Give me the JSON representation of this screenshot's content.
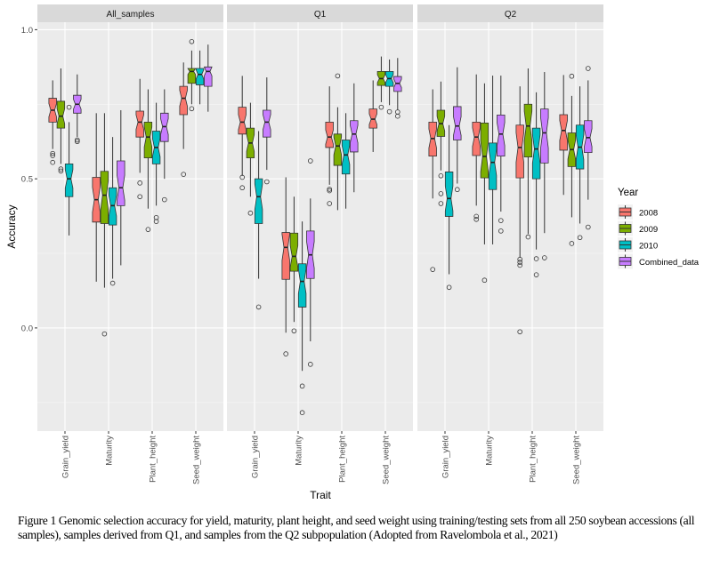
{
  "chart_data": {
    "type": "boxplot",
    "subtype": "notched, faceted",
    "xlabel": "Trait",
    "ylabel": "Accuracy",
    "ylim": [
      -0.346,
      1.025
    ],
    "yticks": [
      {
        "value": 0.0,
        "label": "0.0"
      },
      {
        "value": 0.5,
        "label": "0.5"
      },
      {
        "value": 1.0,
        "label": "1.0"
      }
    ],
    "grid": true,
    "categories": [
      "Grain_yield",
      "Maturity",
      "Plant_height",
      "Seed_weight"
    ],
    "legend": {
      "title": "Year",
      "placement": "right",
      "entries": [
        {
          "label": "2008",
          "color": "#F8766D"
        },
        {
          "label": "2009",
          "color": "#7CAE00"
        },
        {
          "label": "2010",
          "color": "#00BFC4"
        },
        {
          "label": "Combined_data",
          "color": "#C77CFF"
        }
      ]
    },
    "panels": [
      {
        "name": "All_samples",
        "traits": [
          {
            "trait": "Grain_yield",
            "boxes": [
              {
                "low": 0.6,
                "q1": 0.69,
                "median": 0.73,
                "q3": 0.77,
                "high": 0.83,
                "outliers": [
                  0.585,
                  0.578,
                  0.555
                ]
              },
              {
                "low": 0.55,
                "q1": 0.67,
                "median": 0.71,
                "q3": 0.76,
                "high": 0.87,
                "outliers": [
                  0.533,
                  0.526
                ]
              },
              {
                "low": 0.31,
                "q1": 0.44,
                "median": 0.5,
                "q3": 0.55,
                "high": 0.69,
                "outliers": [
                  0.74
                ]
              },
              {
                "low": 0.64,
                "q1": 0.72,
                "median": 0.75,
                "q3": 0.78,
                "high": 0.85,
                "outliers": [
                  0.63,
                  0.625
                ]
              }
            ]
          },
          {
            "trait": "Maturity",
            "boxes": [
              {
                "low": 0.155,
                "q1": 0.355,
                "median": 0.43,
                "q3": 0.505,
                "high": 0.72,
                "outliers": []
              },
              {
                "low": 0.135,
                "q1": 0.35,
                "median": 0.445,
                "q3": 0.525,
                "high": 0.72,
                "outliers": [
                  -0.02
                ]
              },
              {
                "low": 0.165,
                "q1": 0.345,
                "median": 0.41,
                "q3": 0.47,
                "high": 0.64,
                "outliers": [
                  0.15
                ]
              },
              {
                "low": 0.21,
                "q1": 0.41,
                "median": 0.47,
                "q3": 0.56,
                "high": 0.73,
                "outliers": []
              }
            ]
          },
          {
            "trait": "Plant_height",
            "boxes": [
              {
                "low": 0.52,
                "q1": 0.64,
                "median": 0.69,
                "q3": 0.727,
                "high": 0.835,
                "outliers": [
                  0.486,
                  0.44
                ]
              },
              {
                "low": 0.4,
                "q1": 0.57,
                "median": 0.64,
                "q3": 0.69,
                "high": 0.8,
                "outliers": [
                  0.33
                ]
              },
              {
                "low": 0.41,
                "q1": 0.55,
                "median": 0.605,
                "q3": 0.66,
                "high": 0.755,
                "outliers": [
                  0.37,
                  0.357
                ]
              },
              {
                "low": 0.5,
                "q1": 0.625,
                "median": 0.675,
                "q3": 0.72,
                "high": 0.8,
                "outliers": [
                  0.43
                ]
              }
            ]
          },
          {
            "trait": "Seed_weight",
            "boxes": [
              {
                "low": 0.6,
                "q1": 0.715,
                "median": 0.77,
                "q3": 0.81,
                "high": 0.89,
                "outliers": [
                  0.515
                ]
              },
              {
                "low": 0.75,
                "q1": 0.82,
                "median": 0.86,
                "q3": 0.87,
                "high": 0.93,
                "outliers": [
                  0.96,
                  0.735
                ]
              },
              {
                "low": 0.75,
                "q1": 0.815,
                "median": 0.85,
                "q3": 0.87,
                "high": 0.93,
                "outliers": []
              },
              {
                "low": 0.725,
                "q1": 0.81,
                "median": 0.86,
                "q3": 0.875,
                "high": 0.95,
                "outliers": []
              }
            ]
          }
        ]
      },
      {
        "name": "Q1",
        "traits": [
          {
            "trait": "Grain_yield",
            "boxes": [
              {
                "low": 0.51,
                "q1": 0.65,
                "median": 0.69,
                "q3": 0.74,
                "high": 0.845,
                "outliers": [
                  0.505,
                  0.47
                ]
              },
              {
                "low": 0.44,
                "q1": 0.57,
                "median": 0.62,
                "q3": 0.67,
                "high": 0.755,
                "outliers": [
                  0.385
                ]
              },
              {
                "low": 0.165,
                "q1": 0.35,
                "median": 0.44,
                "q3": 0.5,
                "high": 0.66,
                "outliers": [
                  0.07
                ]
              },
              {
                "low": 0.53,
                "q1": 0.64,
                "median": 0.69,
                "q3": 0.73,
                "high": 0.84,
                "outliers": [
                  0.49
                ]
              }
            ]
          },
          {
            "trait": "Maturity",
            "boxes": [
              {
                "low": -0.016,
                "q1": 0.163,
                "median": 0.27,
                "q3": 0.32,
                "high": 0.505,
                "outliers": [
                  -0.087
                ]
              },
              {
                "low": 0.02,
                "q1": 0.19,
                "median": 0.24,
                "q3": 0.318,
                "high": 0.44,
                "outliers": [
                  -0.01
                ]
              },
              {
                "low": -0.144,
                "q1": 0.07,
                "median": 0.156,
                "q3": 0.215,
                "high": 0.357,
                "outliers": [
                  -0.195,
                  -0.284
                ]
              },
              {
                "low": -0.045,
                "q1": 0.166,
                "median": 0.245,
                "q3": 0.325,
                "high": 0.434,
                "outliers": [
                  0.56,
                  -0.122
                ]
              }
            ]
          },
          {
            "trait": "Plant_height",
            "boxes": [
              {
                "low": 0.48,
                "q1": 0.605,
                "median": 0.64,
                "q3": 0.69,
                "high": 0.81,
                "outliers": [
                  0.465,
                  0.46,
                  0.417
                ]
              },
              {
                "low": 0.395,
                "q1": 0.545,
                "median": 0.61,
                "q3": 0.65,
                "high": 0.74,
                "outliers": [
                  0.845
                ]
              },
              {
                "low": 0.4,
                "q1": 0.516,
                "median": 0.58,
                "q3": 0.63,
                "high": 0.72,
                "outliers": []
              },
              {
                "low": 0.455,
                "q1": 0.59,
                "median": 0.65,
                "q3": 0.695,
                "high": 0.82,
                "outliers": []
              }
            ]
          },
          {
            "trait": "Seed_weight",
            "boxes": [
              {
                "low": 0.59,
                "q1": 0.67,
                "median": 0.7,
                "q3": 0.734,
                "high": 0.83,
                "outliers": []
              },
              {
                "low": 0.757,
                "q1": 0.813,
                "median": 0.836,
                "q3": 0.86,
                "high": 0.91,
                "outliers": [
                  0.74
                ]
              },
              {
                "low": 0.747,
                "q1": 0.81,
                "median": 0.836,
                "q3": 0.86,
                "high": 0.9,
                "outliers": [
                  0.725
                ]
              },
              {
                "low": 0.73,
                "q1": 0.793,
                "median": 0.82,
                "q3": 0.843,
                "high": 0.905,
                "outliers": [
                  0.724,
                  0.71
                ]
              }
            ]
          }
        ]
      },
      {
        "name": "Q2",
        "traits": [
          {
            "trait": "Grain_yield",
            "boxes": [
              {
                "low": 0.434,
                "q1": 0.576,
                "median": 0.635,
                "q3": 0.69,
                "high": 0.8,
                "outliers": [
                  0.196
                ]
              },
              {
                "low": 0.528,
                "q1": 0.642,
                "median": 0.685,
                "q3": 0.73,
                "high": 0.826,
                "outliers": [
                  0.51,
                  0.45,
                  0.417
                ]
              },
              {
                "low": 0.18,
                "q1": 0.374,
                "median": 0.434,
                "q3": 0.523,
                "high": 0.68,
                "outliers": [
                  0.136
                ]
              },
              {
                "low": 0.484,
                "q1": 0.63,
                "median": 0.677,
                "q3": 0.742,
                "high": 0.874,
                "outliers": [
                  0.464
                ]
              }
            ]
          },
          {
            "trait": "Maturity",
            "boxes": [
              {
                "low": 0.41,
                "q1": 0.578,
                "median": 0.64,
                "q3": 0.69,
                "high": 0.85,
                "outliers": [
                  0.374,
                  0.364
                ]
              },
              {
                "low": 0.28,
                "q1": 0.503,
                "median": 0.575,
                "q3": 0.687,
                "high": 0.82,
                "outliers": [
                  0.16
                ]
              },
              {
                "low": 0.28,
                "q1": 0.464,
                "median": 0.555,
                "q3": 0.62,
                "high": 0.846,
                "outliers": []
              },
              {
                "low": 0.39,
                "q1": 0.576,
                "median": 0.65,
                "q3": 0.714,
                "high": 0.846,
                "outliers": [
                  0.36,
                  0.325
                ]
              }
            ]
          },
          {
            "trait": "Plant_height",
            "boxes": [
              {
                "low": 0.235,
                "q1": 0.503,
                "median": 0.605,
                "q3": 0.68,
                "high": 0.81,
                "outliers": [
                  0.23,
                  0.22,
                  0.21,
                  -0.013
                ]
              },
              {
                "low": 0.315,
                "q1": 0.573,
                "median": 0.677,
                "q3": 0.75,
                "high": 0.87,
                "outliers": [
                  0.305
                ]
              },
              {
                "low": 0.263,
                "q1": 0.5,
                "median": 0.6,
                "q3": 0.67,
                "high": 0.79,
                "outliers": [
                  0.232,
                  0.178
                ]
              },
              {
                "low": 0.318,
                "q1": 0.553,
                "median": 0.654,
                "q3": 0.734,
                "high": 0.858,
                "outliers": [
                  0.235
                ]
              }
            ]
          },
          {
            "trait": "Seed_weight",
            "boxes": [
              {
                "low": 0.446,
                "q1": 0.596,
                "median": 0.662,
                "q3": 0.715,
                "high": 0.848,
                "outliers": []
              },
              {
                "low": 0.371,
                "q1": 0.541,
                "median": 0.598,
                "q3": 0.654,
                "high": 0.778,
                "outliers": [
                  0.844,
                  0.283
                ]
              },
              {
                "low": 0.35,
                "q1": 0.533,
                "median": 0.606,
                "q3": 0.68,
                "high": 0.81,
                "outliers": [
                  0.303
                ]
              },
              {
                "low": 0.43,
                "q1": 0.588,
                "median": 0.638,
                "q3": 0.695,
                "high": 0.83,
                "outliers": [
                  0.87,
                  0.338
                ]
              }
            ]
          }
        ]
      }
    ]
  },
  "caption": "Figure 1 Genomic selection accuracy for yield, maturity, plant height, and seed weight using training/testing sets from all 250 soybean accessions (all samples), samples derived from Q1, and samples from the Q2 subpopulation (Adopted from Ravelombola et al., 2021)"
}
